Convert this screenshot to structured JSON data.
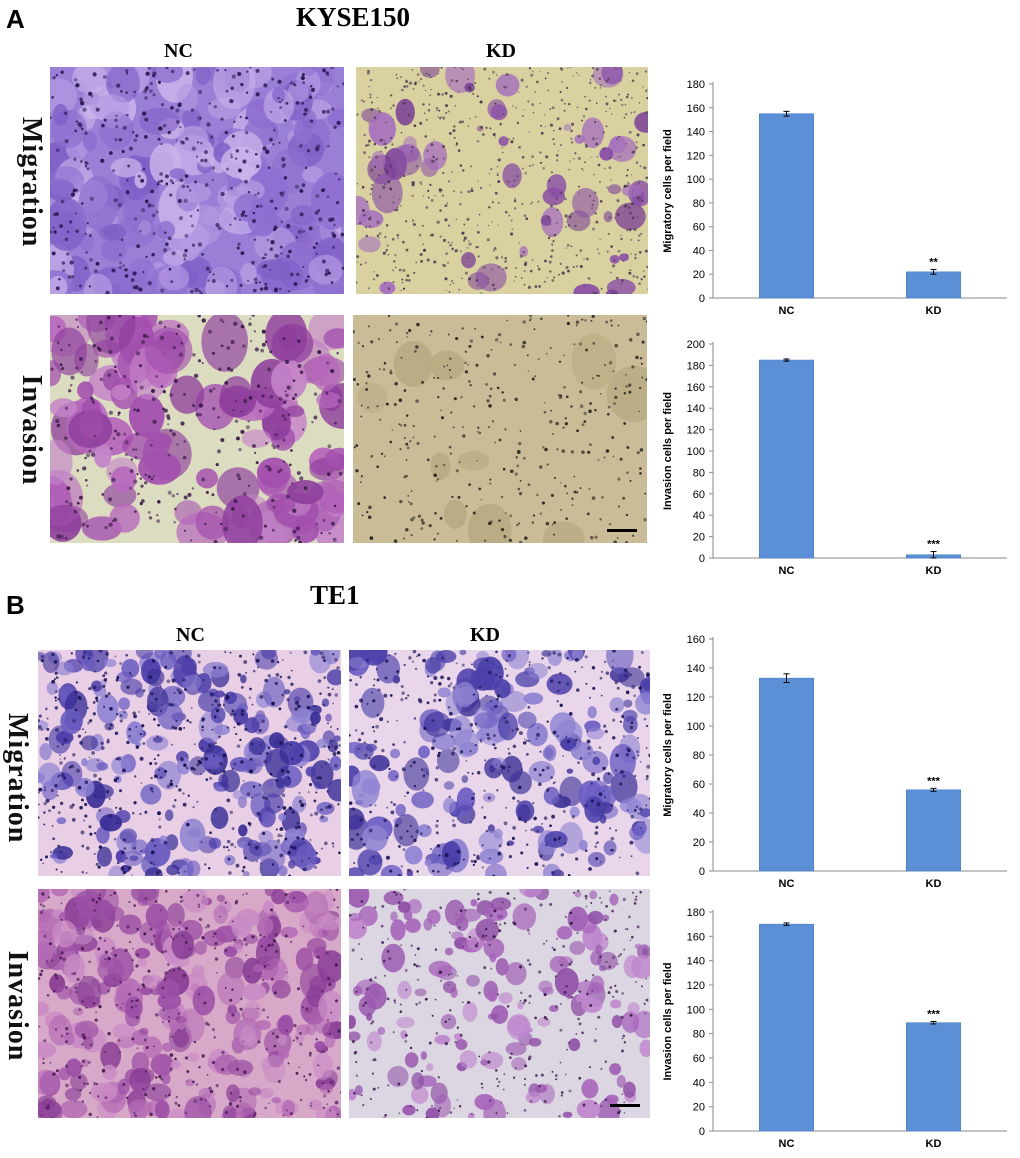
{
  "panel_a": {
    "letter": "A",
    "title": "KYSE150",
    "col_nc": "NC",
    "col_kd": "KD",
    "row_migration": "Migration",
    "row_invasion": "Invasion"
  },
  "panel_b": {
    "letter": "B",
    "title": "TE1",
    "col_nc": "NC",
    "col_kd": "KD",
    "row_migration": "Migration",
    "row_invasion": "Invasion"
  },
  "colors": {
    "bar": "#5b8fd6",
    "bar_dark": "#4a7fc9"
  },
  "chart_data": [
    {
      "id": "a-migration",
      "type": "bar",
      "categories": [
        "NC",
        "KD"
      ],
      "values": [
        155,
        22
      ],
      "errors": [
        2,
        2
      ],
      "annotations": [
        "",
        "**"
      ],
      "ylabel": "Migratory cells per field",
      "ylim": [
        0,
        180
      ],
      "yticks": [
        0,
        20,
        40,
        60,
        80,
        100,
        120,
        140,
        160,
        180
      ]
    },
    {
      "id": "a-invasion",
      "type": "bar",
      "categories": [
        "NC",
        "KD"
      ],
      "values": [
        185,
        3
      ],
      "errors": [
        1,
        3
      ],
      "annotations": [
        "",
        "***"
      ],
      "ylabel": "Invasion cells per field",
      "ylim": [
        0,
        200
      ],
      "yticks": [
        0,
        20,
        40,
        60,
        80,
        100,
        120,
        140,
        160,
        180,
        200
      ]
    },
    {
      "id": "b-migration",
      "type": "bar",
      "categories": [
        "NC",
        "KD"
      ],
      "values": [
        133,
        56
      ],
      "errors": [
        3,
        1
      ],
      "annotations": [
        "",
        "***"
      ],
      "ylabel": "Migratory cells per field",
      "ylim": [
        0,
        160
      ],
      "yticks": [
        0,
        20,
        40,
        60,
        80,
        100,
        120,
        140,
        160
      ]
    },
    {
      "id": "b-invasion",
      "type": "bar",
      "categories": [
        "NC",
        "KD"
      ],
      "values": [
        170,
        89
      ],
      "errors": [
        1,
        1
      ],
      "annotations": [
        "",
        "***"
      ],
      "ylabel": "Invasion cells per field",
      "ylim": [
        0,
        180
      ],
      "yticks": [
        0,
        20,
        40,
        60,
        80,
        100,
        120,
        140,
        160,
        180
      ]
    }
  ]
}
